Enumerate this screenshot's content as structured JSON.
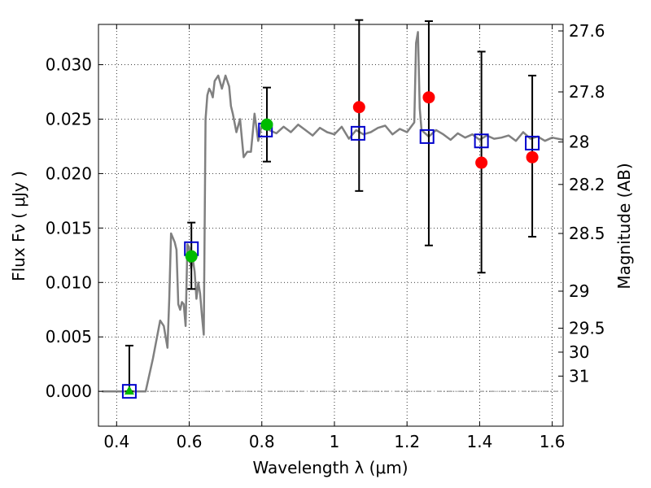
{
  "chart_data": {
    "type": "scatter",
    "title": "",
    "xlabel": "Wavelength  λ (μm)",
    "ylabel": "Flux  Fν  ( μJy )",
    "y2label": "Magnitude (AB)",
    "xlim": [
      0.35,
      1.63
    ],
    "ylim": [
      -0.0032,
      0.0337
    ],
    "x_ticks": [
      0.4,
      0.6,
      0.8,
      1.0,
      1.2,
      1.4,
      1.6
    ],
    "x_tick_labels": [
      "0.4",
      "0.6",
      "0.8",
      "1",
      "1.2",
      "1.4",
      "1.6"
    ],
    "y_ticks": [
      0.0,
      0.005,
      0.01,
      0.015,
      0.02,
      0.025,
      0.03
    ],
    "y_tick_labels": [
      "0.000",
      "0.005",
      "0.010",
      "0.015",
      "0.020",
      "0.025",
      "0.030"
    ],
    "y2_ticks": [
      {
        "label": "27.6",
        "flux": 0.0331
      },
      {
        "label": "27.8",
        "flux": 0.0275
      },
      {
        "label": "28",
        "flux": 0.0229
      },
      {
        "label": "28.2",
        "flux": 0.019
      },
      {
        "label": "28.5",
        "flux": 0.0145
      },
      {
        "label": "29",
        "flux": 0.0092
      },
      {
        "label": "29.5",
        "flux": 0.0058
      },
      {
        "label": "30",
        "flux": 0.0036
      },
      {
        "label": "31",
        "flux": 0.0014
      }
    ],
    "grid": true,
    "colors": {
      "model": "#808080",
      "model_fluxes": "#0000cc",
      "observed": "#ff0000",
      "observed_green": "#00bb00",
      "errorbar": "#000000",
      "zero_line": "#808080"
    },
    "model_spectrum": {
      "x": [
        0.36,
        0.48,
        0.5,
        0.52,
        0.53,
        0.54,
        0.545,
        0.55,
        0.56,
        0.565,
        0.57,
        0.575,
        0.58,
        0.585,
        0.59,
        0.595,
        0.6,
        0.605,
        0.61,
        0.615,
        0.62,
        0.625,
        0.63,
        0.635,
        0.64,
        0.645,
        0.65,
        0.655,
        0.66,
        0.665,
        0.67,
        0.68,
        0.69,
        0.7,
        0.71,
        0.715,
        0.72,
        0.73,
        0.74,
        0.75,
        0.76,
        0.77,
        0.78,
        0.79,
        0.8,
        0.82,
        0.84,
        0.86,
        0.88,
        0.9,
        0.92,
        0.94,
        0.96,
        0.98,
        1.0,
        1.02,
        1.04,
        1.06,
        1.08,
        1.1,
        1.12,
        1.14,
        1.16,
        1.18,
        1.2,
        1.22,
        1.225,
        1.23,
        1.235,
        1.24,
        1.26,
        1.28,
        1.3,
        1.32,
        1.34,
        1.36,
        1.38,
        1.4,
        1.42,
        1.44,
        1.46,
        1.48,
        1.5,
        1.52,
        1.54,
        1.56,
        1.58,
        1.6,
        1.63
      ],
      "y": [
        0.0,
        0.0,
        0.003,
        0.0065,
        0.006,
        0.004,
        0.0085,
        0.0145,
        0.0137,
        0.013,
        0.008,
        0.0075,
        0.0082,
        0.008,
        0.006,
        0.0135,
        0.0132,
        0.0113,
        0.0121,
        0.011,
        0.0085,
        0.01,
        0.009,
        0.007,
        0.0052,
        0.025,
        0.0272,
        0.0278,
        0.0275,
        0.027,
        0.0285,
        0.029,
        0.0278,
        0.029,
        0.028,
        0.0262,
        0.0255,
        0.0238,
        0.025,
        0.0215,
        0.022,
        0.022,
        0.0255,
        0.023,
        0.0245,
        0.024,
        0.0237,
        0.0243,
        0.0238,
        0.0245,
        0.024,
        0.0235,
        0.0242,
        0.0238,
        0.0236,
        0.0243,
        0.0232,
        0.024,
        0.0236,
        0.0238,
        0.0242,
        0.0244,
        0.0236,
        0.0241,
        0.0238,
        0.0247,
        0.032,
        0.033,
        0.026,
        0.024,
        0.0234,
        0.024,
        0.0236,
        0.0231,
        0.0237,
        0.0233,
        0.0236,
        0.0231,
        0.0235,
        0.0232,
        0.0233,
        0.0235,
        0.023,
        0.0238,
        0.0232,
        0.0234,
        0.023,
        0.0233,
        0.0231
      ]
    },
    "model_fluxes": {
      "x": [
        0.435,
        0.606,
        0.81,
        1.065,
        1.255,
        1.405,
        1.545
      ],
      "y": [
        0.0,
        0.0131,
        0.024,
        0.0237,
        0.0234,
        0.023,
        0.0228
      ]
    },
    "observed": {
      "x": [
        0.435,
        0.606,
        0.814,
        1.068,
        1.26,
        1.405,
        1.545
      ],
      "y": [
        0.0,
        0.0124,
        0.0245,
        0.0261,
        0.027,
        0.021,
        0.0215
      ],
      "yerr_low": [
        0.0,
        0.003,
        0.0034,
        0.0077,
        0.0136,
        0.0101,
        0.0073
      ],
      "yerr_high": [
        0.0042,
        0.0031,
        0.0034,
        0.008,
        0.007,
        0.0102,
        0.0075
      ],
      "marker": [
        "triangle",
        "circle",
        "circle",
        "circle",
        "circle",
        "circle",
        "circle"
      ],
      "color": [
        "green",
        "green",
        "green",
        "red",
        "red",
        "red",
        "red"
      ]
    }
  }
}
